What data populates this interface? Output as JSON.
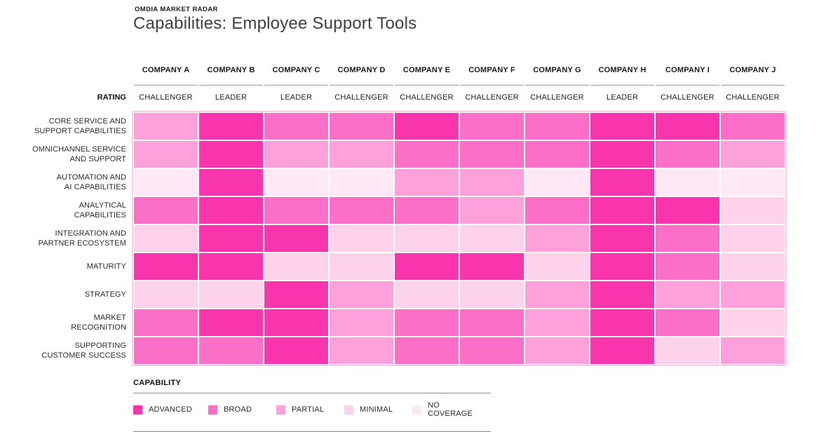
{
  "header": {
    "eyebrow": "OMDIA MARKET RADAR",
    "title": "Capabilities: Employee Support Tools"
  },
  "rating_label": "RATING",
  "chart_data": {
    "type": "heatmap",
    "title": "Capabilities: Employee Support Tools",
    "columns": [
      "COMPANY A",
      "COMPANY B",
      "COMPANY C",
      "COMPANY D",
      "COMPANY E",
      "COMPANY F",
      "COMPANY G",
      "COMPANY H",
      "COMPANY I",
      "COMPANY J"
    ],
    "ratings": [
      "CHALLENGER",
      "LEADER",
      "LEADER",
      "CHALLENGER",
      "CHALLENGER",
      "CHALLENGER",
      "CHALLENGER",
      "LEADER",
      "CHALLENGER",
      "CHALLENGER"
    ],
    "row_labels": [
      "CORE SERVICE AND\nSUPPORT CAPABILITIES",
      "OMNICHANNEL SERVICE\nAND SUPPORT",
      "AUTOMATION AND\nAI CAPABILITIES",
      "ANALYTICAL\nCAPABILITIES",
      "INTEGRATION AND\nPARTNER ECOSYSTEM",
      "MATURITY",
      "STRATEGY",
      "MARKET\nRECOGNITION",
      "SUPPORTING\nCUSTOMER SUCCESS"
    ],
    "levels": [
      "NO COVERAGE",
      "MINIMAL",
      "PARTIAL",
      "BROAD",
      "ADVANCED"
    ],
    "level_colors": {
      "ADVANCED": "#f935ae",
      "BROAD": "#fb6fc9",
      "PARTIAL": "#fda0dc",
      "MINIMAL": "#ffd2ec",
      "NO COVERAGE": "#ffe9f7"
    },
    "cells": [
      [
        "PARTIAL",
        "ADVANCED",
        "BROAD",
        "BROAD",
        "ADVANCED",
        "BROAD",
        "BROAD",
        "ADVANCED",
        "ADVANCED",
        "BROAD"
      ],
      [
        "PARTIAL",
        "ADVANCED",
        "PARTIAL",
        "PARTIAL",
        "BROAD",
        "BROAD",
        "BROAD",
        "ADVANCED",
        "BROAD",
        "PARTIAL"
      ],
      [
        "NO COVERAGE",
        "ADVANCED",
        "NO COVERAGE",
        "NO COVERAGE",
        "PARTIAL",
        "PARTIAL",
        "NO COVERAGE",
        "ADVANCED",
        "NO COVERAGE",
        "NO COVERAGE"
      ],
      [
        "BROAD",
        "ADVANCED",
        "BROAD",
        "BROAD",
        "BROAD",
        "PARTIAL",
        "BROAD",
        "ADVANCED",
        "ADVANCED",
        "MINIMAL"
      ],
      [
        "MINIMAL",
        "ADVANCED",
        "ADVANCED",
        "MINIMAL",
        "MINIMAL",
        "MINIMAL",
        "PARTIAL",
        "ADVANCED",
        "BROAD",
        "MINIMAL"
      ],
      [
        "ADVANCED",
        "ADVANCED",
        "MINIMAL",
        "MINIMAL",
        "ADVANCED",
        "ADVANCED",
        "MINIMAL",
        "ADVANCED",
        "BROAD",
        "MINIMAL"
      ],
      [
        "MINIMAL",
        "MINIMAL",
        "ADVANCED",
        "PARTIAL",
        "MINIMAL",
        "MINIMAL",
        "PARTIAL",
        "ADVANCED",
        "PARTIAL",
        "PARTIAL"
      ],
      [
        "BROAD",
        "ADVANCED",
        "ADVANCED",
        "PARTIAL",
        "BROAD",
        "BROAD",
        "PARTIAL",
        "ADVANCED",
        "BROAD",
        "MINIMAL"
      ],
      [
        "BROAD",
        "BROAD",
        "ADVANCED",
        "PARTIAL",
        "BROAD",
        "BROAD",
        "PARTIAL",
        "ADVANCED",
        "MINIMAL",
        "PARTIAL"
      ]
    ]
  },
  "legend": {
    "title": "CAPABILITY",
    "items": [
      {
        "label": "ADVANCED",
        "color": "#f935ae"
      },
      {
        "label": "BROAD",
        "color": "#fb6fc9"
      },
      {
        "label": "PARTIAL",
        "color": "#fda0dc"
      },
      {
        "label": "MINIMAL",
        "color": "#ffd2ec"
      },
      {
        "label": "NO COVERAGE",
        "color": "#ffe9f7"
      }
    ]
  }
}
